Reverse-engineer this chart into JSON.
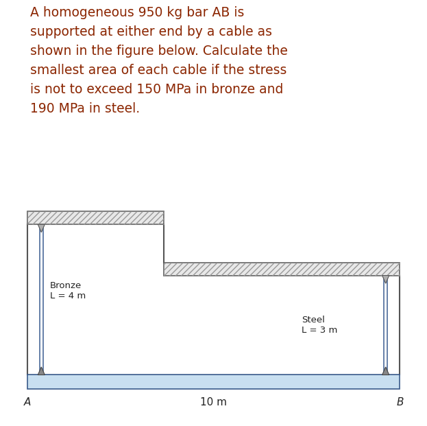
{
  "text_color": "#8B2500",
  "bg_color": "#ffffff",
  "title_text": "A homogeneous 950 kg bar AB is\nsupported at either end by a cable as\nshown in the figure below. Calculate the\nsmallest area of each cable if the stress\nis not to exceed 150 MPa in bronze and\n190 MPa in steel.",
  "title_fontsize": 13.5,
  "fig_width": 6.23,
  "fig_height": 6.21,
  "bar_color": "#c8dff0",
  "bar_border_color": "#3a5a8a",
  "cable_color": "#4a6a9a",
  "hatch_color": "#aaaaaa",
  "label_bronze": "Bronze\nL = 4 m",
  "label_steel": "Steel\nL = 3 m",
  "label_A": "A",
  "label_B": "B",
  "label_10m": "10 m"
}
